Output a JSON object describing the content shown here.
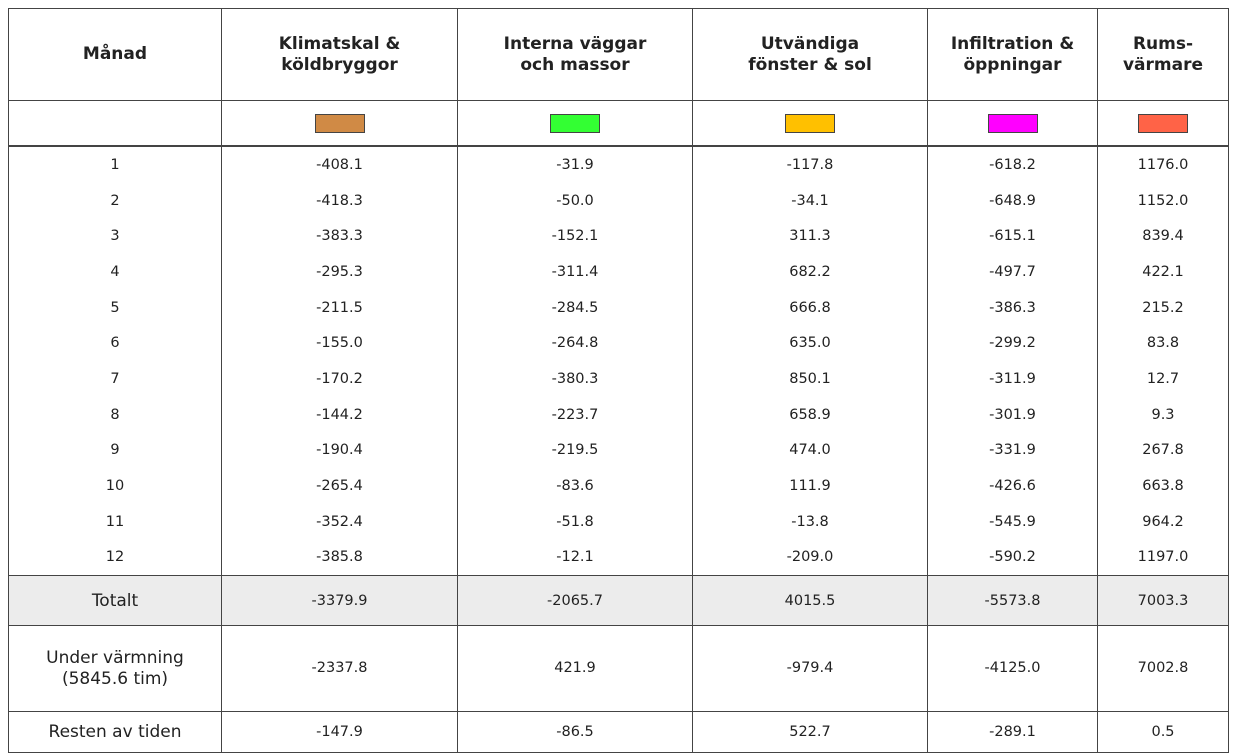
{
  "table": {
    "header": [
      "Månad",
      "Klimatskal &\nköldbryggor",
      "Interna väggar\noch massor",
      "Utvändiga\nfönster & sol",
      "Infiltration &\nöppningar",
      "Rums-\nvärmare"
    ],
    "colors": [
      "#d08a45",
      "#33ff33",
      "#ffc000",
      "#ff00ff",
      "#ff6347"
    ],
    "rows": [
      [
        "1",
        "-408.1",
        "-31.9",
        "-117.8",
        "-618.2",
        "1176.0"
      ],
      [
        "2",
        "-418.3",
        "-50.0",
        "-34.1",
        "-648.9",
        "1152.0"
      ],
      [
        "3",
        "-383.3",
        "-152.1",
        "311.3",
        "-615.1",
        "839.4"
      ],
      [
        "4",
        "-295.3",
        "-311.4",
        "682.2",
        "-497.7",
        "422.1"
      ],
      [
        "5",
        "-211.5",
        "-284.5",
        "666.8",
        "-386.3",
        "215.2"
      ],
      [
        "6",
        "-155.0",
        "-264.8",
        "635.0",
        "-299.2",
        "83.8"
      ],
      [
        "7",
        "-170.2",
        "-380.3",
        "850.1",
        "-311.9",
        "12.7"
      ],
      [
        "8",
        "-144.2",
        "-223.7",
        "658.9",
        "-301.9",
        "9.3"
      ],
      [
        "9",
        "-190.4",
        "-219.5",
        "474.0",
        "-331.9",
        "267.8"
      ],
      [
        "10",
        "-265.4",
        "-83.6",
        "111.9",
        "-426.6",
        "663.8"
      ],
      [
        "11",
        "-352.4",
        "-51.8",
        "-13.8",
        "-545.9",
        "964.2"
      ],
      [
        "12",
        "-385.8",
        "-12.1",
        "-209.0",
        "-590.2",
        "1197.0"
      ]
    ],
    "summary": [
      [
        "Totalt",
        "-3379.9",
        "-2065.7",
        "4015.5",
        "-5573.8",
        "7003.3"
      ],
      [
        "Under värmning\n(5845.6 tim)",
        "-2337.8",
        "421.9",
        "-979.4",
        "-4125.0",
        "7002.8"
      ],
      [
        "Resten av tiden",
        "-147.9",
        "-86.5",
        "522.7",
        "-289.1",
        "0.5"
      ]
    ]
  }
}
